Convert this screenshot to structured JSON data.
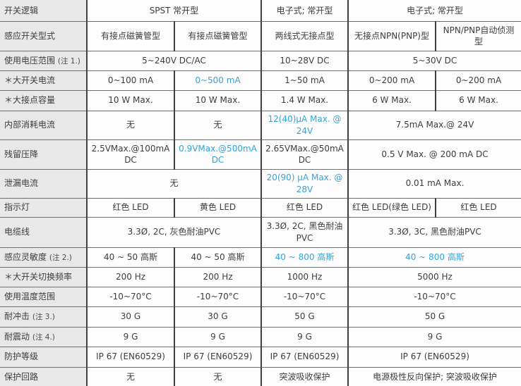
{
  "colors": {
    "label_bg": "#e8e8e8",
    "cell_bg": "#fdfdfd",
    "text": "#3d3d3d",
    "highlight_blue": "#35a3d7",
    "vertical_border": "#404040",
    "horizontal_border": "#6e6e6e"
  },
  "table": {
    "columns": 6,
    "rows": [
      {
        "label": "开关逻辑",
        "cells": [
          {
            "text": "SPST 常开型",
            "span": 2
          },
          {
            "text": "电子式; 常开型",
            "span": 1
          },
          {
            "text": "电子式; 常开型",
            "span": 2
          }
        ]
      },
      {
        "label": "感应开关型式",
        "cells": [
          {
            "text": "有接点磁簧管型"
          },
          {
            "text": "有接点磁簧管型"
          },
          {
            "text": "两线式无接点型"
          },
          {
            "text": "无接点NPN(PNP)型"
          },
          {
            "text": "NPN/PNP自动侦测型"
          }
        ]
      },
      {
        "label": "使用电压范围",
        "note": "(注 1.)",
        "cells": [
          {
            "text": "5~240V DC/AC",
            "span": 2
          },
          {
            "text": "10~28V DC"
          },
          {
            "text": "5~30V DC",
            "span": 2
          }
        ]
      },
      {
        "label": "＊大开关电流",
        "cells": [
          {
            "text": "0~100 mA"
          },
          {
            "text": "0~500 mA",
            "blue": true
          },
          {
            "text": "1~50 mA"
          },
          {
            "text": "0~200 mA"
          },
          {
            "text": "0~200 mA"
          }
        ]
      },
      {
        "label": "＊大接点容量",
        "cells": [
          {
            "text": "10 W Max."
          },
          {
            "text": "10 W Max."
          },
          {
            "text": "1.4 W Max."
          },
          {
            "text": "6 W Max."
          },
          {
            "text": "6 W Max."
          }
        ]
      },
      {
        "label": "内部消耗电流",
        "cells": [
          {
            "text": "无"
          },
          {
            "text": "无"
          },
          {
            "text": "12(40)µA Max. @ 24V",
            "blue": true
          },
          {
            "text": "7.5mA Max.@ 24V",
            "span": 2
          }
        ]
      },
      {
        "label": "残留压降",
        "cells": [
          {
            "text": "2.5VMax.@100mA DC"
          },
          {
            "text": "0.9VMax.@500mA DC",
            "blue": true
          },
          {
            "text": "2.65VMax.@50mA DC"
          },
          {
            "text": "0.5 V Max. @ 200 mA DC",
            "span": 2
          }
        ]
      },
      {
        "label": "泄漏电流",
        "cells": [
          {
            "text": "无",
            "span": 2
          },
          {
            "text": "20(90) µA Max. @ 28V",
            "blue": true
          },
          {
            "text": "0.01 mA Max.",
            "span": 2
          }
        ]
      },
      {
        "label": "指示灯",
        "cells": [
          {
            "text": "红色 LED"
          },
          {
            "text": "黄色 LED"
          },
          {
            "text": "红色 LED"
          },
          {
            "text": "红色 LED(绿色 LED)"
          },
          {
            "text": "红色 LED"
          }
        ]
      },
      {
        "label": "电缆线",
        "cells": [
          {
            "text": "3.3Ø, 2C, 灰色耐油PVC",
            "span": 2
          },
          {
            "text": "3.3Ø, 2C, 黑色耐油PVC"
          },
          {
            "text": "3.3Ø, 3C, 黑色耐油PVC",
            "span": 2
          }
        ]
      },
      {
        "label": "感应灵敏度",
        "note": "(注 2.)",
        "cells": [
          {
            "text": "40 ~ 50 高斯"
          },
          {
            "text": "40 ~ 50 高斯"
          },
          {
            "text": "40 ~ 800 高斯",
            "blue": true
          },
          {
            "text": "40 ~ 800 高斯",
            "blue": true,
            "span": 2
          }
        ]
      },
      {
        "label": "＊大开关切换频率",
        "cells": [
          {
            "text": "200 Hz"
          },
          {
            "text": "200 Hz"
          },
          {
            "text": "1000 Hz"
          },
          {
            "text": "5000 Hz",
            "span": 2
          }
        ]
      },
      {
        "label": "使用温度范围",
        "cells": [
          {
            "text": "-10~70°C"
          },
          {
            "text": "-10~70°C"
          },
          {
            "text": "-10~70°C"
          },
          {
            "text": "-10~70°C",
            "span": 2
          }
        ]
      },
      {
        "label": "耐冲击",
        "note": "(注 3.)",
        "cells": [
          {
            "text": "30 G"
          },
          {
            "text": "30 G"
          },
          {
            "text": "50 G"
          },
          {
            "text": "50 G",
            "span": 2
          }
        ]
      },
      {
        "label": "耐震动",
        "note": "(注 4.)",
        "cells": [
          {
            "text": "9 G"
          },
          {
            "text": "9 G"
          },
          {
            "text": "9 G"
          },
          {
            "text": "9 G",
            "span": 2
          }
        ]
      },
      {
        "label": "防护等级",
        "cells": [
          {
            "text": "IP 67 (EN60529)"
          },
          {
            "text": "IP 67 (EN60529)"
          },
          {
            "text": "IP 67 (EN60529)"
          },
          {
            "text": "IP 67 (EN60529)",
            "span": 2
          }
        ]
      },
      {
        "label": "保护回路",
        "cells": [
          {
            "text": "无"
          },
          {
            "text": "无"
          },
          {
            "text": "突波吸收保护"
          },
          {
            "text": "电源极性反向保护; 突波吸收保护",
            "span": 2
          }
        ]
      }
    ]
  }
}
